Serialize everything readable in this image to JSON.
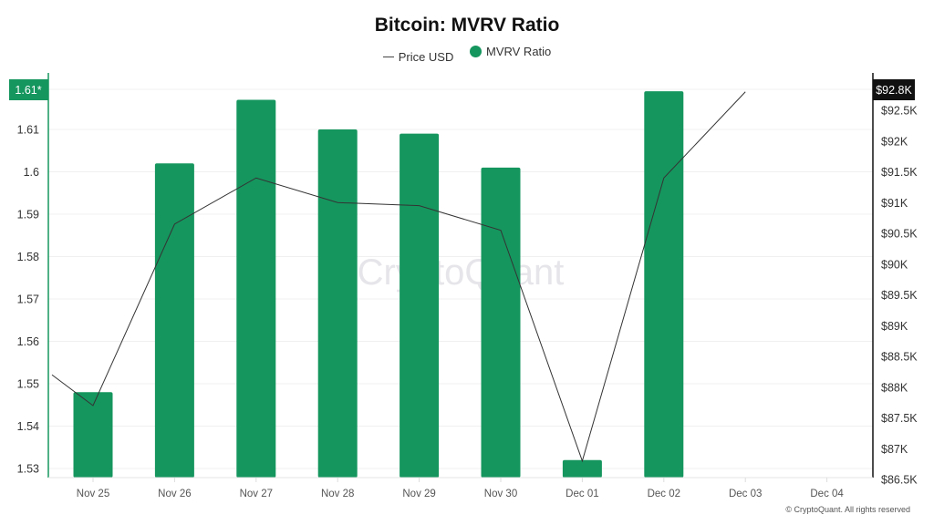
{
  "title": "Bitcoin: MVRV Ratio",
  "legend": [
    {
      "label": "Price USD",
      "marker": "line",
      "color": "#444444"
    },
    {
      "label": "MVRV Ratio",
      "marker": "dot",
      "color": "#16965f"
    }
  ],
  "watermark": "CryptoQuant",
  "copyright": "© CryptoQuant. All rights reserved",
  "left_axis": {
    "ticks": [
      "1.61",
      "1.6",
      "1.59",
      "1.58",
      "1.57",
      "1.56",
      "1.55",
      "1.54",
      "1.53"
    ],
    "current_label": "1.61*",
    "color": "#16965f"
  },
  "right_axis": {
    "ticks": [
      "$92.5K",
      "$92K",
      "$91.5K",
      "$91K",
      "$90.5K",
      "$90K",
      "$89.5K",
      "$89K",
      "$88.5K",
      "$88K",
      "$87.5K",
      "$87K",
      "$86.5K"
    ],
    "current_label": "$92.8K",
    "color": "#111111"
  },
  "colors": {
    "bar": "#16965f",
    "line": "#333333",
    "grid": "#f0f0f0"
  },
  "chart_data": {
    "type": "bar",
    "title": "Bitcoin: MVRV Ratio",
    "categories": [
      "Nov 25",
      "Nov 26",
      "Nov 27",
      "Nov 28",
      "Nov 29",
      "Nov 30",
      "Dec 01",
      "Dec 02",
      "Dec 03",
      "Dec 04"
    ],
    "series": [
      {
        "name": "MVRV Ratio",
        "type": "bar",
        "axis": "left",
        "values": [
          1.548,
          1.602,
          1.617,
          1.61,
          1.609,
          1.601,
          1.532,
          1.619,
          null,
          null
        ]
      },
      {
        "name": "Price USD",
        "type": "line",
        "axis": "right",
        "values": [
          87700,
          90650,
          91400,
          91000,
          90950,
          90550,
          86800,
          91400,
          92800,
          null
        ],
        "leading_value_before_nov25": 88200
      }
    ],
    "xlabel": "",
    "ylabel_left": "MVRV Ratio",
    "ylabel_right": "Price USD",
    "ylim_left": [
      1.528,
      1.6215
    ],
    "ylim_right": [
      86300,
      92800
    ],
    "left_current": "1.61*",
    "right_current": "$92.8K",
    "grid": true,
    "legend_position": "top"
  }
}
